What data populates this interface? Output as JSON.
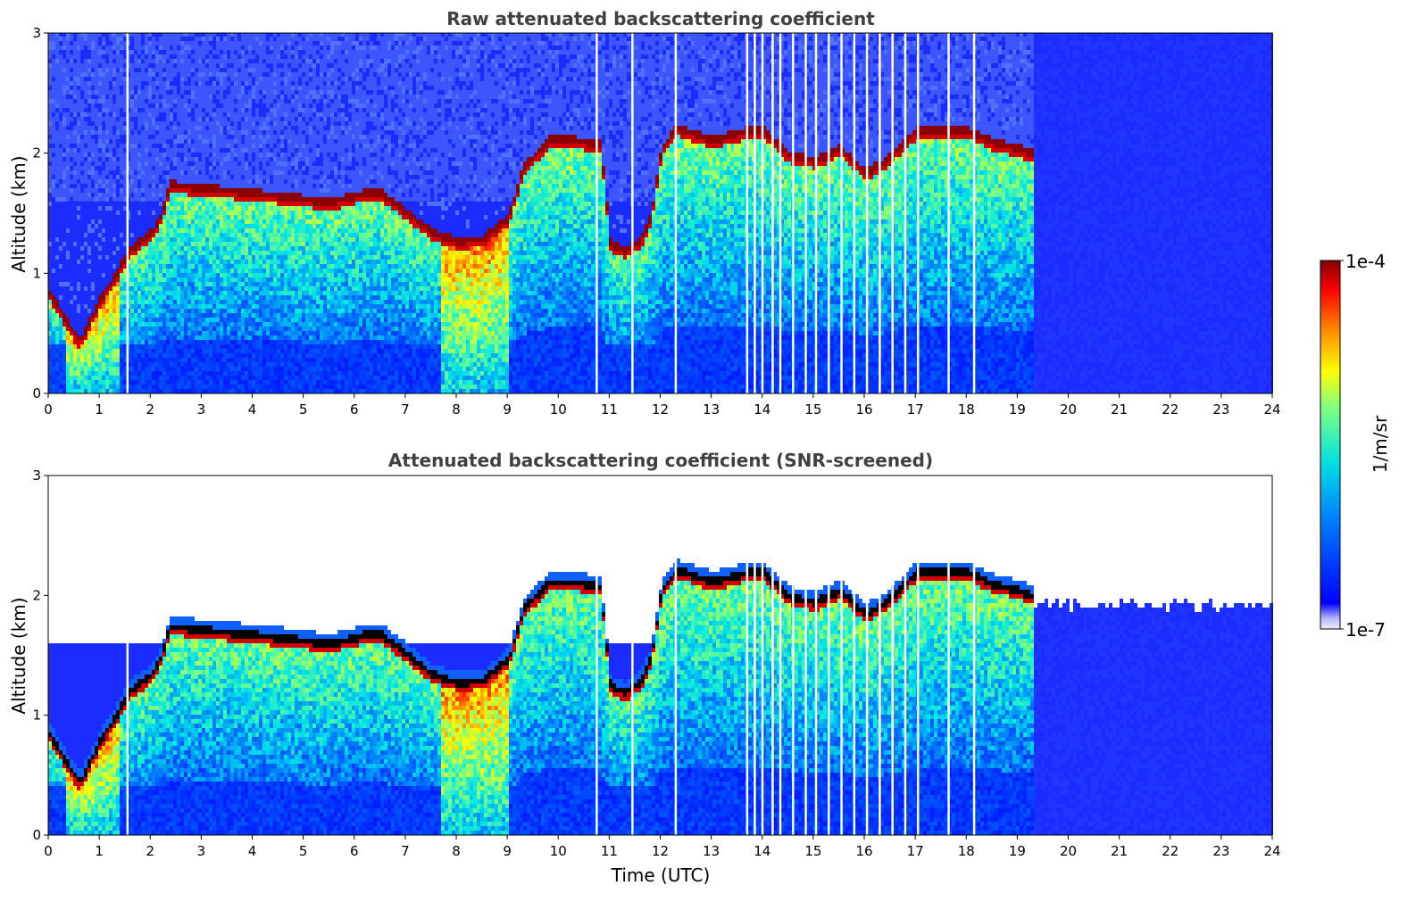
{
  "chart_data": [
    {
      "type": "heatmap",
      "title": "Raw attenuated backscattering coefficient",
      "xlabel": "",
      "ylabel": "Altitude (km)",
      "xlim": [
        0,
        24
      ],
      "ylim": [
        0,
        3
      ],
      "xticks": [
        "0",
        "1",
        "2",
        "3",
        "4",
        "5",
        "6",
        "7",
        "8",
        "9",
        "10",
        "11",
        "12",
        "13",
        "14",
        "15",
        "16",
        "17",
        "18",
        "19",
        "20",
        "21",
        "22",
        "23",
        "24"
      ],
      "yticks": [
        "0",
        "1",
        "2",
        "3"
      ],
      "screened": false,
      "cloud_base": {
        "time": [
          0,
          0.5,
          0.6,
          1.0,
          1.3,
          1.55,
          2.0,
          2.2,
          2.35,
          3,
          4,
          5,
          5.5,
          6.2,
          6.5,
          7,
          7.5,
          8,
          8.5,
          9.0,
          9.3,
          9.8,
          10.3,
          10.8,
          11.0,
          11.3,
          11.6,
          11.8,
          12.0,
          12.3,
          13,
          13.7,
          14.0,
          14.5,
          15.0,
          15.5,
          16.0,
          16.4,
          17.0,
          17.5,
          18.0,
          18.5,
          19.0,
          19.3
        ],
        "altitude": [
          0.85,
          0.5,
          0.45,
          0.8,
          1.0,
          1.2,
          1.35,
          1.5,
          1.75,
          1.72,
          1.68,
          1.63,
          1.6,
          1.68,
          1.68,
          1.52,
          1.35,
          1.28,
          1.3,
          1.48,
          1.9,
          2.12,
          2.12,
          2.08,
          1.25,
          1.2,
          1.3,
          1.5,
          2.05,
          2.22,
          2.12,
          2.2,
          2.2,
          2.0,
          1.95,
          2.05,
          1.85,
          1.95,
          2.2,
          2.2,
          2.2,
          2.1,
          2.05,
          2.0
        ]
      },
      "data_gaps_utc": [
        1.55,
        10.75,
        11.45,
        12.3,
        13.7,
        13.85,
        14.0,
        14.2,
        14.35,
        14.6,
        14.85,
        15.05,
        15.3,
        15.55,
        15.8,
        16.05,
        16.3,
        16.55,
        16.8,
        17.05,
        17.65,
        18.15
      ]
    },
    {
      "type": "heatmap",
      "title": "Attenuated backscattering coefficient (SNR-screened)",
      "xlabel": "Time (UTC)",
      "ylabel": "Altitude (km)",
      "xlim": [
        0,
        24
      ],
      "ylim": [
        0,
        3
      ],
      "xticks": [
        "0",
        "1",
        "2",
        "3",
        "4",
        "5",
        "6",
        "7",
        "8",
        "9",
        "10",
        "11",
        "12",
        "13",
        "14",
        "15",
        "16",
        "17",
        "18",
        "19",
        "20",
        "21",
        "22",
        "23",
        "24"
      ],
      "yticks": [
        "0",
        "1",
        "2",
        "3"
      ],
      "screened": true
    }
  ],
  "colorbar": {
    "max_label": "1e-4",
    "min_label": "1e-7",
    "unit_label": "1/m/sr",
    "colormap": "jet",
    "scale": "log"
  },
  "colors": {
    "background_noise": "#1a2cff",
    "peak": "#8b0000",
    "screened_peak": "#000000"
  }
}
